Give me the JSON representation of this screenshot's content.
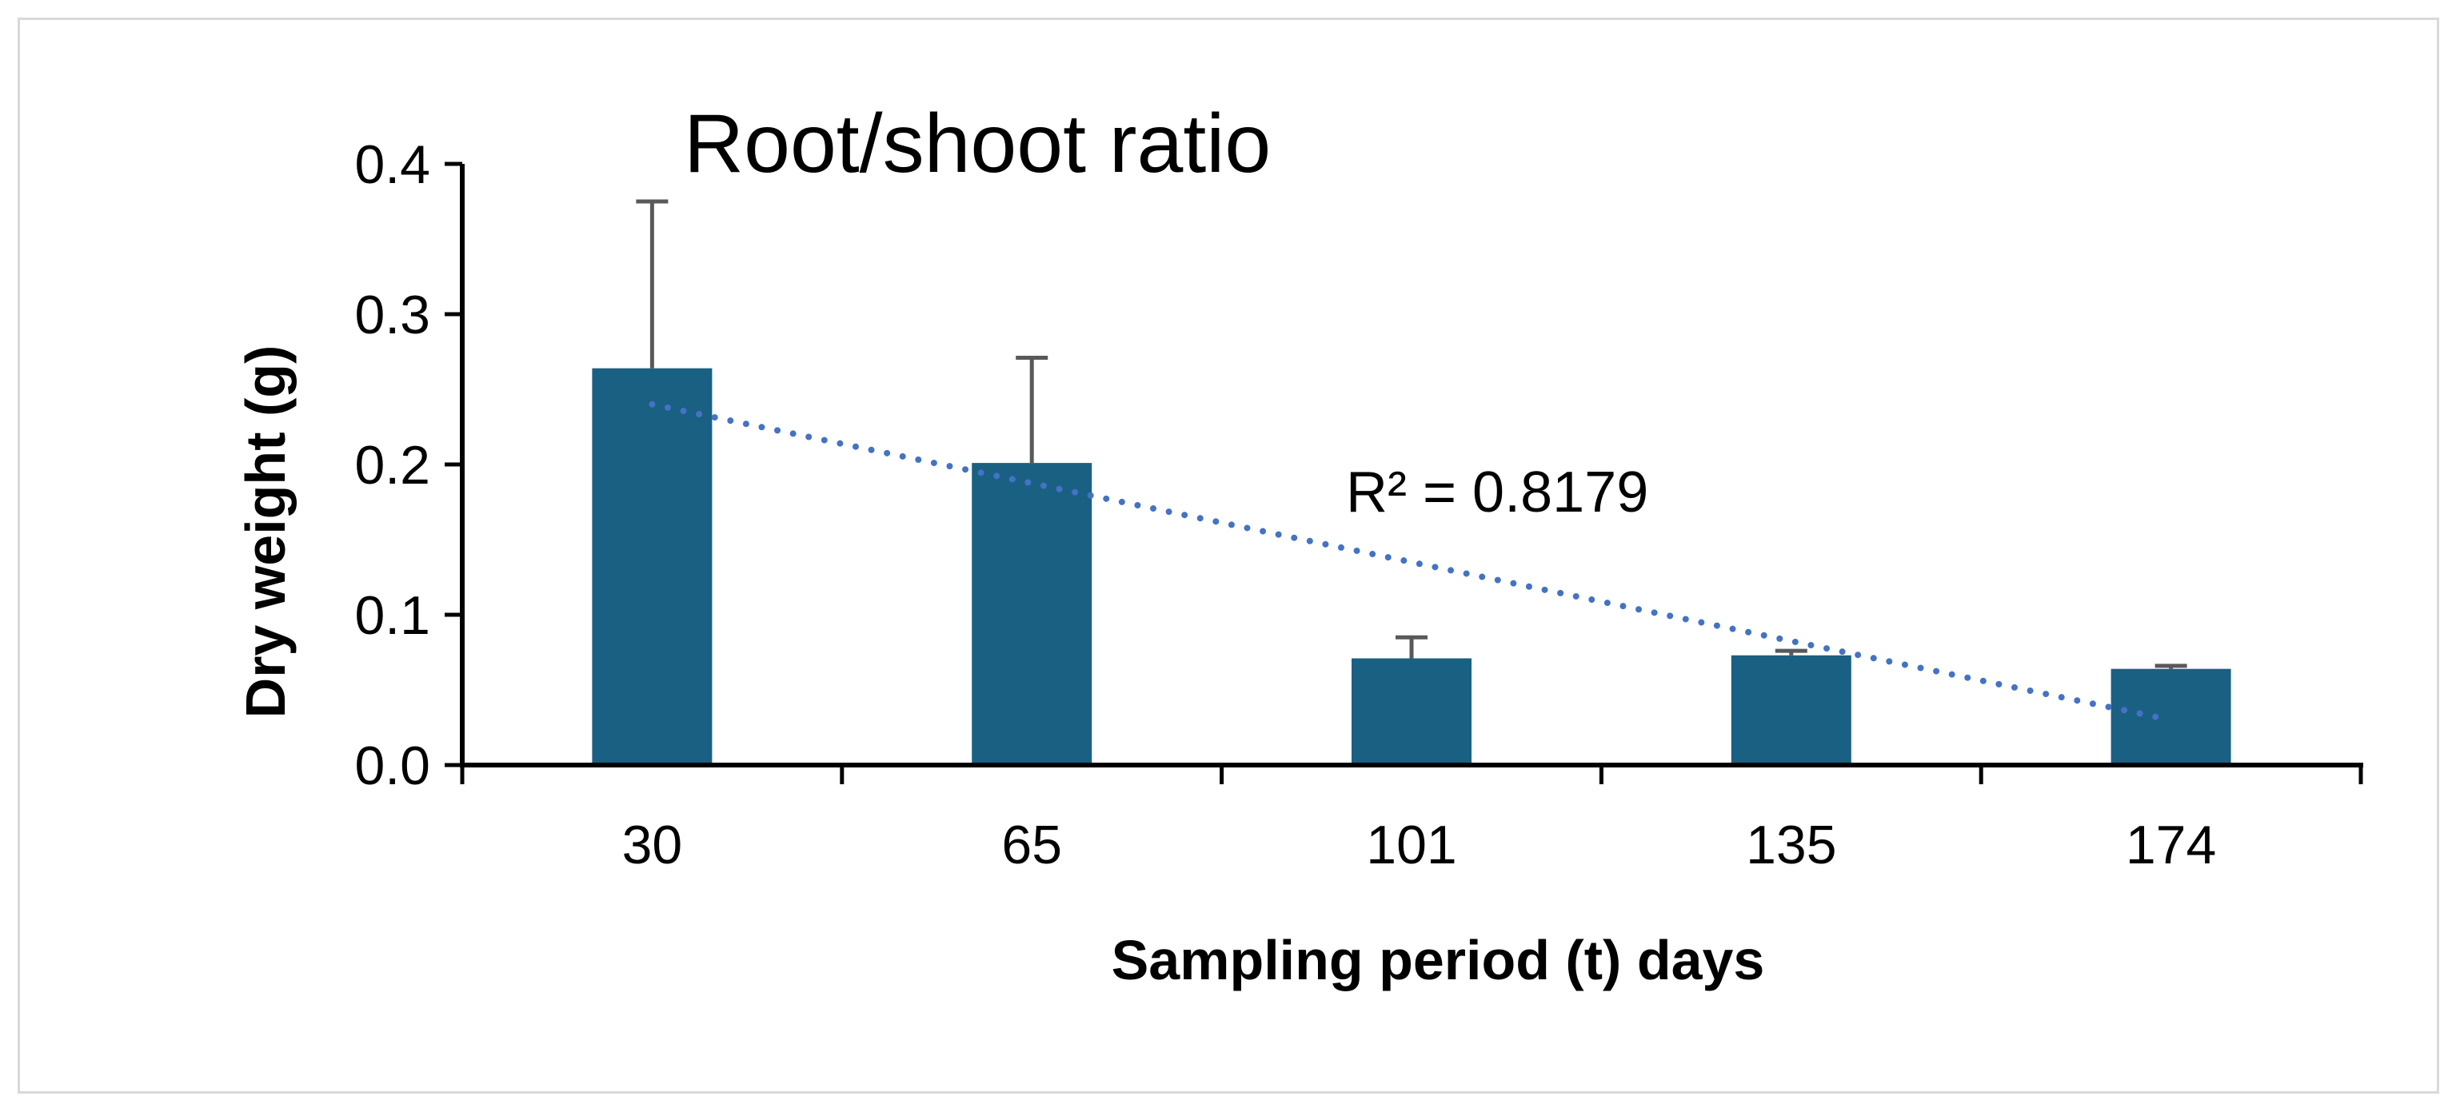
{
  "chart_data": {
    "type": "bar",
    "title": "Root/shoot ratio",
    "xlabel": "Sampling period (t) days",
    "ylabel": "Dry weight (g)",
    "categories": [
      "30",
      "65",
      "101",
      "135",
      "174"
    ],
    "series": [
      {
        "name": "Root/shoot ratio",
        "values": [
          0.264,
          0.201,
          0.071,
          0.073,
          0.064
        ],
        "error_plus": [
          0.111,
          0.07,
          0.014,
          0.003,
          0.002
        ]
      }
    ],
    "trendline": {
      "type": "linear",
      "style": "dotted",
      "start": 0.24,
      "end": 0.03,
      "label": "R² = 0.8179"
    },
    "ylim": [
      0,
      0.4
    ],
    "yticks": [
      0.0,
      0.1,
      0.2,
      0.3,
      0.4
    ],
    "ytick_labels": [
      "0.0",
      "0.1",
      "0.2",
      "0.3",
      "0.4"
    ],
    "grid": false,
    "colors": {
      "bar": "#1a6083",
      "error_bar": "#595959",
      "trendline": "#4472c4",
      "axis": "#000000",
      "border": "#d9d9d9"
    }
  }
}
